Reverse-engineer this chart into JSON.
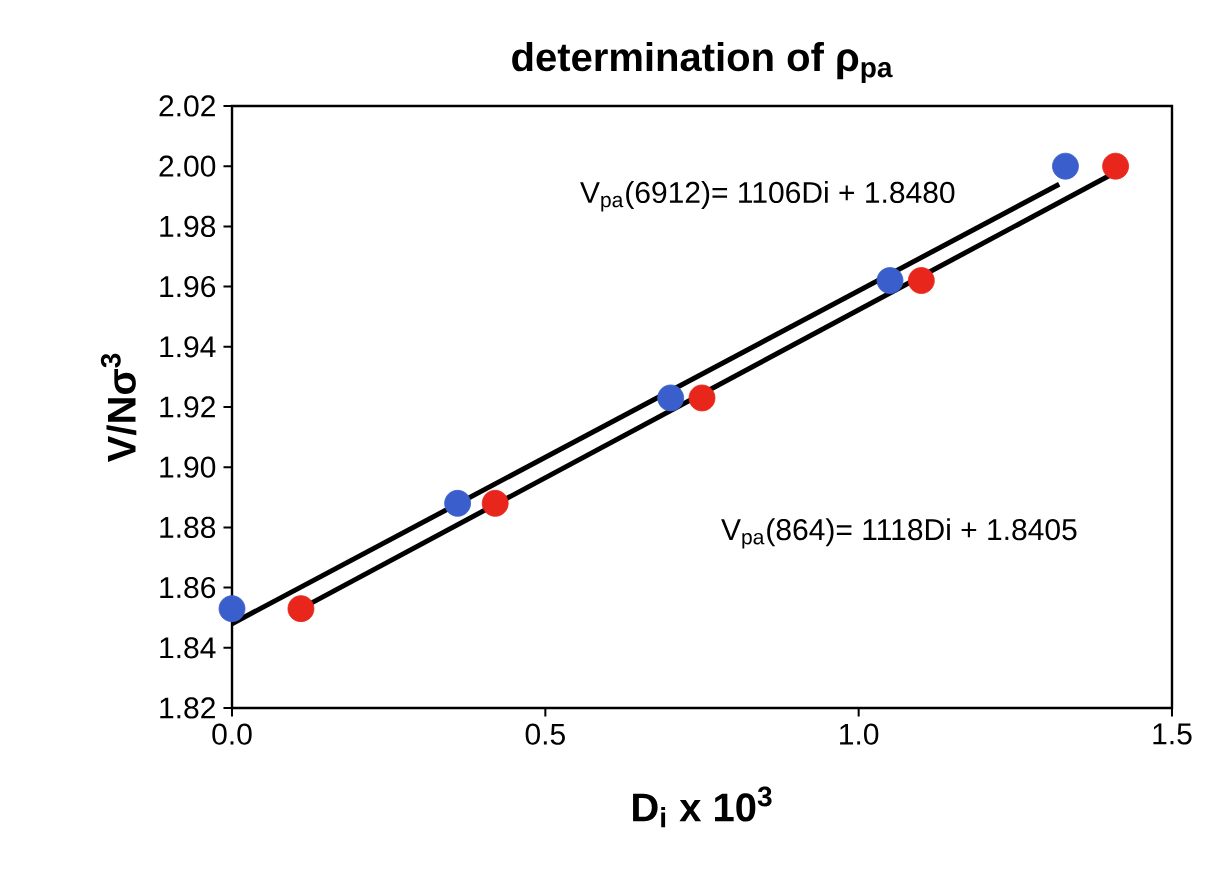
{
  "chart_data": {
    "type": "scatter",
    "title": "determination of ρ$_{pa}$",
    "xlabel": "D$_{i}$ x 10$^{3}$",
    "ylabel": "V/Nσ$^{3}$",
    "xlim": [
      0,
      1.5
    ],
    "ylim": [
      1.82,
      2.02
    ],
    "xticks": [
      {
        "value": 0,
        "label": "0.0"
      },
      {
        "value": 0.5,
        "label": "0.5"
      },
      {
        "value": 1.0,
        "label": "1.0"
      },
      {
        "value": 1.5,
        "label": "1.5"
      }
    ],
    "yticks": [
      1.82,
      1.84,
      1.86,
      1.88,
      {
        "value": 1.9,
        "label": "1.90"
      },
      1.92,
      1.94,
      1.96,
      1.98,
      {
        "value": 2.0,
        "label": "2.00"
      },
      2.02
    ],
    "grid": false,
    "series": [
      {
        "marker": "circle",
        "color": "#3a5fcd",
        "x": [
          0,
          0.36,
          0.7,
          1.05,
          1.33
        ],
        "values": [
          1.853,
          1.888,
          1.923,
          1.962,
          2.0
        ]
      },
      {
        "marker": "circle",
        "color": "#e8261c",
        "x": [
          0.11,
          0.42,
          0.75,
          1.1,
          1.41
        ],
        "values": [
          1.853,
          1.888,
          1.923,
          1.962,
          2.0
        ]
      },
      {
        "type": "line",
        "marker": "none",
        "color": "#000000",
        "x": [
          0,
          1.32
        ],
        "values": [
          1.848,
          1.994
        ]
      },
      {
        "type": "line",
        "marker": "none",
        "color": "#000000",
        "x": [
          0.11,
          1.41
        ],
        "values": [
          1.853,
          1.998
        ]
      }
    ],
    "annotations": [
      "V$_{pa}$(6912)= 1106Di + 1.8480",
      "V$_{pa}$(864)= 1118Di + 1.8405"
    ]
  }
}
